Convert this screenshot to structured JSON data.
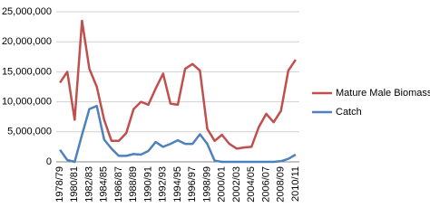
{
  "chart_data": {
    "type": "line",
    "categories": [
      "1978/79",
      null,
      "1980/81",
      null,
      "1982/83",
      null,
      "1984/85",
      null,
      "1986/87",
      null,
      "1988/89",
      null,
      "1990/91",
      null,
      "1992/93",
      null,
      "1994/95",
      null,
      "1996/97",
      null,
      "1998/99",
      null,
      "2000/01",
      null,
      "2002/03",
      null,
      "2004/05",
      null,
      "2006/07",
      null,
      "2008/09",
      null,
      "2010/11"
    ],
    "series": [
      {
        "name": "Mature Male Biomass",
        "color": "#c0504d",
        "values": [
          13200000,
          15000000,
          7000000,
          23500000,
          15500000,
          12500000,
          7000000,
          3500000,
          3500000,
          4800000,
          8800000,
          10000000,
          9500000,
          12200000,
          14700000,
          9700000,
          9500000,
          15500000,
          16300000,
          15200000,
          5500000,
          3500000,
          4500000,
          3000000,
          2200000,
          2400000,
          2500000,
          5800000,
          8000000,
          6600000,
          8500000,
          15200000,
          17000000
        ]
      },
      {
        "name": "Catch",
        "color": "#4f81bd",
        "values": [
          2000000,
          300000,
          0,
          4500000,
          8800000,
          9300000,
          3700000,
          2200000,
          1000000,
          1000000,
          1300000,
          1200000,
          1800000,
          3300000,
          2500000,
          3000000,
          3600000,
          3000000,
          3000000,
          4600000,
          3000000,
          200000,
          0,
          0,
          0,
          0,
          0,
          0,
          0,
          0,
          100000,
          500000,
          1200000
        ]
      }
    ],
    "ylim": [
      0,
      25000000
    ],
    "yticks": [
      0,
      {
        "value": 5000000,
        "label": "5,000,000"
      },
      {
        "value": 10000000,
        "label": "10,000,000"
      },
      {
        "value": 15000000,
        "label": "15,000,000"
      },
      {
        "value": 20000000,
        "label": "20,000,000"
      },
      {
        "value": 25000000,
        "label": "25,000,000"
      }
    ],
    "grid": true,
    "legend": "right"
  }
}
